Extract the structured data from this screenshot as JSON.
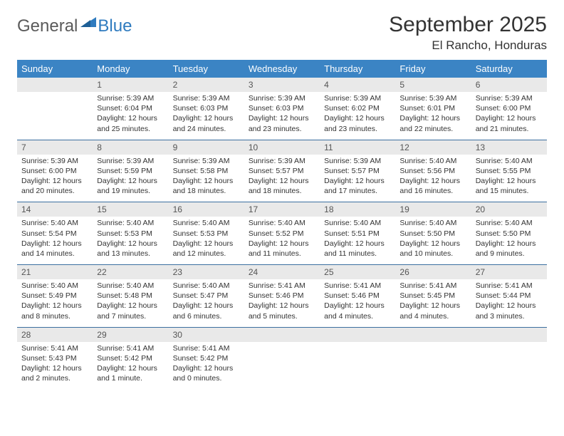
{
  "logo": {
    "text1": "General",
    "text2": "Blue"
  },
  "title": "September 2025",
  "location": "El Rancho, Honduras",
  "colors": {
    "header_bg": "#3b84c4",
    "header_text": "#ffffff",
    "daynum_bg": "#e9e9e9",
    "week_border": "#3b6fa0",
    "logo_gray": "#5a5a5a",
    "logo_blue": "#2f7bbf"
  },
  "daysOfWeek": [
    "Sunday",
    "Monday",
    "Tuesday",
    "Wednesday",
    "Thursday",
    "Friday",
    "Saturday"
  ],
  "weeks": [
    [
      {
        "n": "",
        "sr": "",
        "ss": "",
        "dl": ""
      },
      {
        "n": "1",
        "sr": "Sunrise: 5:39 AM",
        "ss": "Sunset: 6:04 PM",
        "dl": "Daylight: 12 hours and 25 minutes."
      },
      {
        "n": "2",
        "sr": "Sunrise: 5:39 AM",
        "ss": "Sunset: 6:03 PM",
        "dl": "Daylight: 12 hours and 24 minutes."
      },
      {
        "n": "3",
        "sr": "Sunrise: 5:39 AM",
        "ss": "Sunset: 6:03 PM",
        "dl": "Daylight: 12 hours and 23 minutes."
      },
      {
        "n": "4",
        "sr": "Sunrise: 5:39 AM",
        "ss": "Sunset: 6:02 PM",
        "dl": "Daylight: 12 hours and 23 minutes."
      },
      {
        "n": "5",
        "sr": "Sunrise: 5:39 AM",
        "ss": "Sunset: 6:01 PM",
        "dl": "Daylight: 12 hours and 22 minutes."
      },
      {
        "n": "6",
        "sr": "Sunrise: 5:39 AM",
        "ss": "Sunset: 6:00 PM",
        "dl": "Daylight: 12 hours and 21 minutes."
      }
    ],
    [
      {
        "n": "7",
        "sr": "Sunrise: 5:39 AM",
        "ss": "Sunset: 6:00 PM",
        "dl": "Daylight: 12 hours and 20 minutes."
      },
      {
        "n": "8",
        "sr": "Sunrise: 5:39 AM",
        "ss": "Sunset: 5:59 PM",
        "dl": "Daylight: 12 hours and 19 minutes."
      },
      {
        "n": "9",
        "sr": "Sunrise: 5:39 AM",
        "ss": "Sunset: 5:58 PM",
        "dl": "Daylight: 12 hours and 18 minutes."
      },
      {
        "n": "10",
        "sr": "Sunrise: 5:39 AM",
        "ss": "Sunset: 5:57 PM",
        "dl": "Daylight: 12 hours and 18 minutes."
      },
      {
        "n": "11",
        "sr": "Sunrise: 5:39 AM",
        "ss": "Sunset: 5:57 PM",
        "dl": "Daylight: 12 hours and 17 minutes."
      },
      {
        "n": "12",
        "sr": "Sunrise: 5:40 AM",
        "ss": "Sunset: 5:56 PM",
        "dl": "Daylight: 12 hours and 16 minutes."
      },
      {
        "n": "13",
        "sr": "Sunrise: 5:40 AM",
        "ss": "Sunset: 5:55 PM",
        "dl": "Daylight: 12 hours and 15 minutes."
      }
    ],
    [
      {
        "n": "14",
        "sr": "Sunrise: 5:40 AM",
        "ss": "Sunset: 5:54 PM",
        "dl": "Daylight: 12 hours and 14 minutes."
      },
      {
        "n": "15",
        "sr": "Sunrise: 5:40 AM",
        "ss": "Sunset: 5:53 PM",
        "dl": "Daylight: 12 hours and 13 minutes."
      },
      {
        "n": "16",
        "sr": "Sunrise: 5:40 AM",
        "ss": "Sunset: 5:53 PM",
        "dl": "Daylight: 12 hours and 12 minutes."
      },
      {
        "n": "17",
        "sr": "Sunrise: 5:40 AM",
        "ss": "Sunset: 5:52 PM",
        "dl": "Daylight: 12 hours and 11 minutes."
      },
      {
        "n": "18",
        "sr": "Sunrise: 5:40 AM",
        "ss": "Sunset: 5:51 PM",
        "dl": "Daylight: 12 hours and 11 minutes."
      },
      {
        "n": "19",
        "sr": "Sunrise: 5:40 AM",
        "ss": "Sunset: 5:50 PM",
        "dl": "Daylight: 12 hours and 10 minutes."
      },
      {
        "n": "20",
        "sr": "Sunrise: 5:40 AM",
        "ss": "Sunset: 5:50 PM",
        "dl": "Daylight: 12 hours and 9 minutes."
      }
    ],
    [
      {
        "n": "21",
        "sr": "Sunrise: 5:40 AM",
        "ss": "Sunset: 5:49 PM",
        "dl": "Daylight: 12 hours and 8 minutes."
      },
      {
        "n": "22",
        "sr": "Sunrise: 5:40 AM",
        "ss": "Sunset: 5:48 PM",
        "dl": "Daylight: 12 hours and 7 minutes."
      },
      {
        "n": "23",
        "sr": "Sunrise: 5:40 AM",
        "ss": "Sunset: 5:47 PM",
        "dl": "Daylight: 12 hours and 6 minutes."
      },
      {
        "n": "24",
        "sr": "Sunrise: 5:41 AM",
        "ss": "Sunset: 5:46 PM",
        "dl": "Daylight: 12 hours and 5 minutes."
      },
      {
        "n": "25",
        "sr": "Sunrise: 5:41 AM",
        "ss": "Sunset: 5:46 PM",
        "dl": "Daylight: 12 hours and 4 minutes."
      },
      {
        "n": "26",
        "sr": "Sunrise: 5:41 AM",
        "ss": "Sunset: 5:45 PM",
        "dl": "Daylight: 12 hours and 4 minutes."
      },
      {
        "n": "27",
        "sr": "Sunrise: 5:41 AM",
        "ss": "Sunset: 5:44 PM",
        "dl": "Daylight: 12 hours and 3 minutes."
      }
    ],
    [
      {
        "n": "28",
        "sr": "Sunrise: 5:41 AM",
        "ss": "Sunset: 5:43 PM",
        "dl": "Daylight: 12 hours and 2 minutes."
      },
      {
        "n": "29",
        "sr": "Sunrise: 5:41 AM",
        "ss": "Sunset: 5:42 PM",
        "dl": "Daylight: 12 hours and 1 minute."
      },
      {
        "n": "30",
        "sr": "Sunrise: 5:41 AM",
        "ss": "Sunset: 5:42 PM",
        "dl": "Daylight: 12 hours and 0 minutes."
      },
      {
        "n": "",
        "sr": "",
        "ss": "",
        "dl": ""
      },
      {
        "n": "",
        "sr": "",
        "ss": "",
        "dl": ""
      },
      {
        "n": "",
        "sr": "",
        "ss": "",
        "dl": ""
      },
      {
        "n": "",
        "sr": "",
        "ss": "",
        "dl": ""
      }
    ]
  ]
}
